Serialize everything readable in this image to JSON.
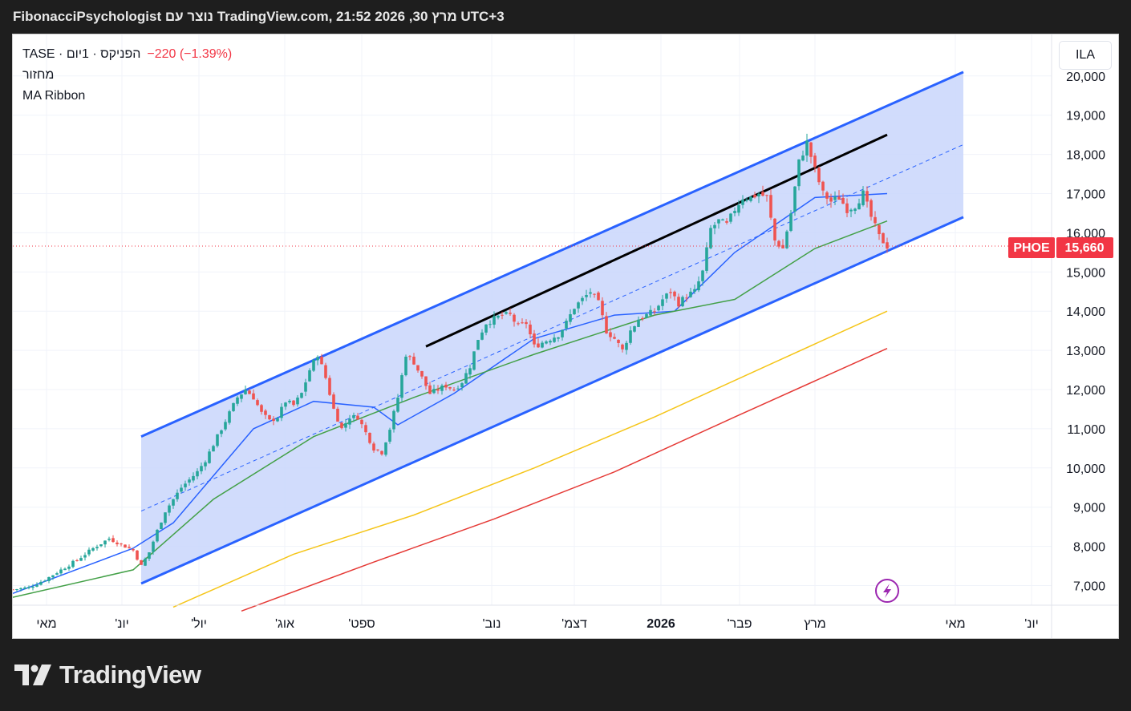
{
  "header": {
    "caption": "FibonacciPsychologist נוצר עם TradingView.com, מרץ 30, 2026 21:52 UTC+3"
  },
  "legend": {
    "symbol_line": "הפניקס · 1יום · TASE",
    "change": "−220 (−1.39%)",
    "indicator_1": "מחזור",
    "indicator_2": "MA Ribbon"
  },
  "currency_button": "ILA",
  "price_tag": {
    "symbol": "PHOE",
    "value": "15,660",
    "color": "#f23645"
  },
  "footer": {
    "brand": "TradingView"
  },
  "colors": {
    "up": "#26a69a",
    "down": "#ef5350",
    "channel": "#2962ff",
    "channel_fill": "#c9d6fb",
    "trendline": "#000000",
    "ma_fast": "#2962ff",
    "ma_mid": "#43a047",
    "ma_slow": "#f5c518",
    "ma_slowest": "#e53935"
  },
  "chart_data": {
    "type": "candlestick",
    "ylim": [
      6500,
      20800
    ],
    "y_ticks": [
      "7,000",
      "8,000",
      "9,000",
      "10,000",
      "11,000",
      "12,000",
      "13,000",
      "14,000",
      "15,000",
      "16,000",
      "17,000",
      "18,000",
      "19,000",
      "20,000"
    ],
    "x_labels": [
      "מאי",
      "'יונ",
      "'יול",
      "'אוג",
      "'ספט",
      "'נוב",
      "'דצמ",
      "2026",
      "'פבר",
      "מרץ",
      "מאי",
      "'יונ"
    ],
    "last_price": 15660,
    "series": [
      {
        "name": "price",
        "points": [
          [
            0,
            6900
          ],
          [
            4,
            6950
          ],
          [
            8,
            7150
          ],
          [
            12,
            7400
          ],
          [
            16,
            7650
          ],
          [
            20,
            7950
          ],
          [
            24,
            8200
          ],
          [
            28,
            8000
          ],
          [
            30,
            7900
          ],
          [
            32,
            7500
          ],
          [
            34,
            7850
          ],
          [
            36,
            8400
          ],
          [
            38,
            8900
          ],
          [
            40,
            9200
          ],
          [
            42,
            9500
          ],
          [
            44,
            9700
          ],
          [
            46,
            9900
          ],
          [
            48,
            10200
          ],
          [
            50,
            10600
          ],
          [
            52,
            11000
          ],
          [
            54,
            11400
          ],
          [
            56,
            11800
          ],
          [
            58,
            12000
          ],
          [
            60,
            11800
          ],
          [
            62,
            11400
          ],
          [
            64,
            11200
          ],
          [
            66,
            11300
          ],
          [
            68,
            11700
          ],
          [
            70,
            11600
          ],
          [
            72,
            11900
          ],
          [
            74,
            12500
          ],
          [
            76,
            12900
          ],
          [
            78,
            12300
          ],
          [
            80,
            11500
          ],
          [
            82,
            11000
          ],
          [
            84,
            11300
          ],
          [
            86,
            11300
          ],
          [
            88,
            10900
          ],
          [
            90,
            10500
          ],
          [
            92,
            10400
          ],
          [
            94,
            11000
          ],
          [
            96,
            11800
          ],
          [
            98,
            12900
          ],
          [
            100,
            12700
          ],
          [
            102,
            12300
          ],
          [
            104,
            11900
          ],
          [
            106,
            12000
          ],
          [
            108,
            12100
          ],
          [
            110,
            12000
          ],
          [
            112,
            12200
          ],
          [
            114,
            12600
          ],
          [
            116,
            13300
          ],
          [
            118,
            13700
          ],
          [
            120,
            13800
          ],
          [
            122,
            13900
          ],
          [
            124,
            13900
          ],
          [
            126,
            13600
          ],
          [
            128,
            13700
          ],
          [
            130,
            13100
          ],
          [
            132,
            13200
          ],
          [
            134,
            13300
          ],
          [
            136,
            13400
          ],
          [
            138,
            13700
          ],
          [
            140,
            14100
          ],
          [
            142,
            14300
          ],
          [
            144,
            14500
          ],
          [
            146,
            14200
          ],
          [
            148,
            13500
          ],
          [
            150,
            13300
          ],
          [
            152,
            13000
          ],
          [
            154,
            13500
          ],
          [
            156,
            13800
          ],
          [
            158,
            13900
          ],
          [
            160,
            14000
          ],
          [
            162,
            14300
          ],
          [
            164,
            14500
          ],
          [
            166,
            14200
          ],
          [
            168,
            14400
          ],
          [
            170,
            14500
          ],
          [
            172,
            15000
          ],
          [
            174,
            16100
          ],
          [
            176,
            16300
          ],
          [
            178,
            16200
          ],
          [
            180,
            16600
          ],
          [
            182,
            16900
          ],
          [
            184,
            16900
          ],
          [
            186,
            17000
          ],
          [
            188,
            16900
          ],
          [
            190,
            15800
          ],
          [
            192,
            15600
          ],
          [
            194,
            16500
          ],
          [
            196,
            17800
          ],
          [
            198,
            18300
          ],
          [
            200,
            17600
          ],
          [
            202,
            17000
          ],
          [
            204,
            16800
          ],
          [
            206,
            16900
          ],
          [
            208,
            16600
          ],
          [
            210,
            16700
          ],
          [
            212,
            17000
          ],
          [
            214,
            16400
          ],
          [
            216,
            15900
          ],
          [
            218,
            15660
          ]
        ]
      },
      {
        "name": "",
        "points": [
          [
            0,
            6800
          ],
          [
            30,
            7950
          ],
          [
            40,
            8600
          ],
          [
            60,
            11000
          ],
          [
            75,
            11700
          ],
          [
            90,
            11550
          ],
          [
            96,
            11100
          ],
          [
            110,
            11900
          ],
          [
            130,
            13300
          ],
          [
            150,
            13900
          ],
          [
            165,
            14000
          ],
          [
            180,
            15500
          ],
          [
            200,
            16900
          ],
          [
            218,
            17000
          ]
        ]
      },
      {
        "name": "",
        "points": [
          [
            0,
            6700
          ],
          [
            30,
            7400
          ],
          [
            50,
            9200
          ],
          [
            75,
            10800
          ],
          [
            100,
            11800
          ],
          [
            130,
            12900
          ],
          [
            160,
            13900
          ],
          [
            180,
            14300
          ],
          [
            200,
            15600
          ],
          [
            218,
            16300
          ]
        ]
      },
      {
        "name": "",
        "points": [
          [
            40,
            6450
          ],
          [
            70,
            7800
          ],
          [
            100,
            8800
          ],
          [
            130,
            10000
          ],
          [
            160,
            11300
          ],
          [
            190,
            12700
          ],
          [
            218,
            14000
          ]
        ]
      },
      {
        "name": "",
        "points": [
          [
            57,
            6350
          ],
          [
            90,
            7600
          ],
          [
            120,
            8700
          ],
          [
            150,
            9900
          ],
          [
            180,
            11300
          ],
          [
            218,
            13050
          ]
        ]
      }
    ],
    "channel": {
      "upper": [
        [
          32,
          10800
        ],
        [
          237,
          20100
        ]
      ],
      "lower": [
        [
          32,
          7050
        ],
        [
          237,
          16400
        ]
      ],
      "mid": [
        [
          32,
          8900
        ],
        [
          237,
          18250
        ]
      ]
    },
    "trendline": [
      [
        103,
        13100
      ],
      [
        218,
        18500
      ]
    ]
  }
}
